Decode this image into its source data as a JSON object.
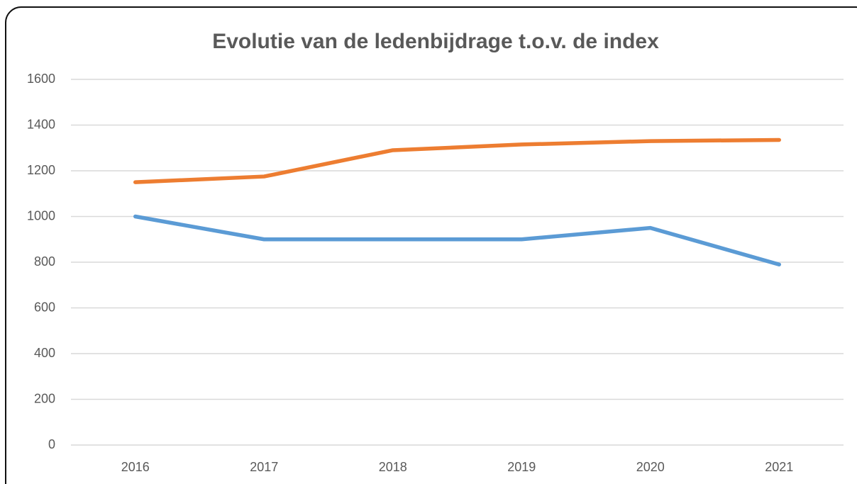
{
  "chart_data": {
    "type": "line",
    "title": "Evolutie van de ledenbijdrage t.o.v. de index",
    "categories": [
      "2016",
      "2017",
      "2018",
      "2019",
      "2020",
      "2021"
    ],
    "series": [
      {
        "color": "#5b9bd5",
        "values": [
          1000,
          900,
          900,
          900,
          950,
          790
        ]
      },
      {
        "color": "#ed7d31",
        "values": [
          1150,
          1175,
          1290,
          1315,
          1330,
          1335
        ]
      }
    ],
    "ylim": [
      0,
      1600
    ],
    "yticks": [
      0,
      200,
      400,
      600,
      800,
      1000,
      1200,
      1400,
      1600
    ],
    "grid": true
  }
}
